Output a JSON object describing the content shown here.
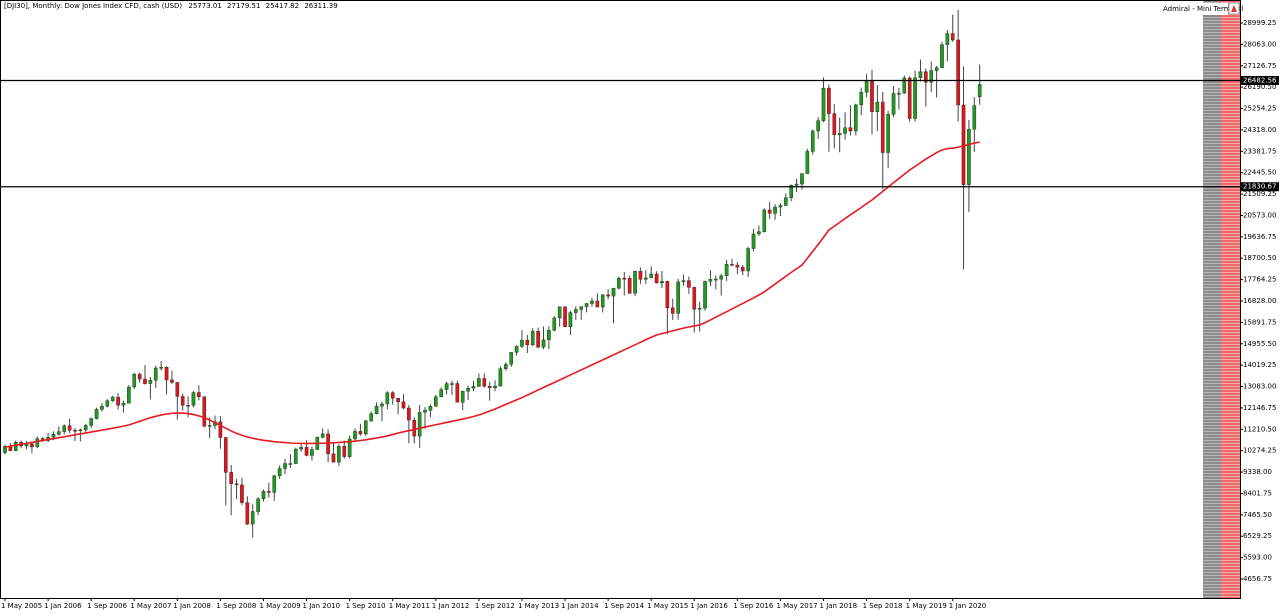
{
  "chart_data": {
    "type": "candlestick",
    "title": "[DJI30], Monthly:  Dow Jones Index CFD, cash (USD)",
    "badge": "Admiral - Mini Terminal",
    "categories": [
      "1 May 2005",
      null,
      null,
      null,
      null,
      null,
      null,
      null,
      "1 Jan 2006",
      null,
      null,
      null,
      null,
      null,
      null,
      null,
      "1 Sep 2006",
      null,
      null,
      null,
      null,
      null,
      null,
      null,
      "1 May 2007",
      null,
      null,
      null,
      null,
      null,
      null,
      null,
      "1 Jan 2008",
      null,
      null,
      null,
      null,
      null,
      null,
      null,
      "1 Sep 2008",
      null,
      null,
      null,
      null,
      null,
      null,
      null,
      "1 May 2009",
      null,
      null,
      null,
      null,
      null,
      null,
      null,
      "1 Jan 2010",
      null,
      null,
      null,
      null,
      null,
      null,
      null,
      "1 Sep 2010",
      null,
      null,
      null,
      null,
      null,
      null,
      null,
      "1 May 2011",
      null,
      null,
      null,
      null,
      null,
      null,
      null,
      "1 Jan 2012",
      null,
      null,
      null,
      null,
      null,
      null,
      null,
      "1 Sep 2012",
      null,
      null,
      null,
      null,
      null,
      null,
      null,
      "1 May 2013",
      null,
      null,
      null,
      null,
      null,
      null,
      null,
      "1 Jan 2014",
      null,
      null,
      null,
      null,
      null,
      null,
      null,
      "1 Sep 2014",
      null,
      null,
      null,
      null,
      null,
      null,
      null,
      "1 May 2015",
      null,
      null,
      null,
      null,
      null,
      null,
      null,
      "1 Jan 2016",
      null,
      null,
      null,
      null,
      null,
      null,
      null,
      "1 Sep 2016",
      null,
      null,
      null,
      null,
      null,
      null,
      null,
      "1 May 2017",
      null,
      null,
      null,
      null,
      null,
      null,
      null,
      "1 Jan 2018",
      null,
      null,
      null,
      null,
      null,
      null,
      null,
      "1 Sep 2018",
      null,
      null,
      null,
      null,
      null,
      null,
      null,
      "1 May 2019",
      null,
      null,
      null,
      null,
      null,
      null,
      null,
      "1 Jan 2020",
      null,
      null,
      null,
      null,
      null
    ],
    "open": [
      10193,
      10467,
      10275,
      10641,
      10482,
      10569,
      10440,
      10806,
      10718,
      10865,
      10993,
      11109,
      11367,
      11168,
      11150,
      11186,
      11381,
      11679,
      12081,
      12222,
      12463,
      12622,
      12269,
      12354,
      13063,
      13628,
      13409,
      13212,
      13358,
      13896,
      13930,
      13372,
      13265,
      12650,
      12266,
      12263,
      12820,
      12638,
      11350,
      11378,
      11544,
      10851,
      9325,
      8829,
      8776,
      8001,
      7063,
      7609,
      8168,
      8500,
      8447,
      9172,
      9496,
      9712,
      9713,
      10345,
      10428,
      10067,
      10325,
      10857,
      11009,
      10137,
      9774,
      10466,
      10015,
      10788,
      11118,
      11006,
      11578,
      11892,
      12226,
      12320,
      12811,
      12570,
      12414,
      12143,
      11614,
      10913,
      11955,
      12046,
      12218,
      12633,
      12952,
      13212,
      13214,
      12393,
      12880,
      13009,
      13091,
      13437,
      13096,
      13026,
      13104,
      13861,
      14054,
      14579,
      14840,
      15116,
      14910,
      15500,
      14810,
      15130,
      15546,
      16086,
      16577,
      15699,
      16322,
      16458,
      16581,
      16717,
      16827,
      16563,
      17098,
      17043,
      17391,
      17828,
      17823,
      17165,
      18133,
      17776,
      17841,
      18011,
      17620,
      17690,
      16528,
      16285,
      17664,
      17720,
      17425,
      16466,
      16517,
      17685,
      17774,
      17787,
      17930,
      18432,
      18401,
      18308,
      18142,
      19124,
      19763,
      19864,
      20812,
      20663,
      20941,
      21009,
      21350,
      21891,
      21948,
      22405,
      23377,
      24272,
      24719,
      26149,
      25029,
      24103,
      24163,
      24416,
      24271,
      25415,
      25965,
      26458,
      25116,
      25538,
      23327,
      24999,
      25916,
      25929,
      26593,
      24815,
      26600,
      26864,
      26403,
      26917,
      27046,
      28051,
      28538,
      28256,
      25409,
      21917,
      24346,
      25773.01
    ],
    "high": [
      10542,
      10600,
      10720,
      10720,
      10700,
      10620,
      10900,
      10880,
      11050,
      11120,
      11330,
      11420,
      11670,
      11260,
      11230,
      11450,
      11730,
      12160,
      12360,
      12530,
      12680,
      12790,
      12470,
      13140,
      13690,
      13690,
      14020,
      13500,
      14000,
      14200,
      13970,
      13780,
      13280,
      12770,
      12650,
      12890,
      13140,
      12660,
      11730,
      11810,
      11790,
      10880,
      9650,
      9030,
      9090,
      8280,
      7930,
      8240,
      8580,
      8880,
      9220,
      9630,
      9920,
      10120,
      10410,
      10580,
      10730,
      10450,
      10900,
      11260,
      11210,
      10600,
      10560,
      10720,
      10950,
      11250,
      11450,
      11630,
      11990,
      12390,
      12420,
      12880,
      12880,
      12580,
      12750,
      12280,
      11740,
      12280,
      12180,
      12300,
      12720,
      13050,
      13300,
      13340,
      13340,
      12900,
      13120,
      13330,
      13650,
      13660,
      13290,
      13360,
      13970,
      14150,
      14590,
      14890,
      15550,
      15340,
      15640,
      15660,
      15710,
      15720,
      16170,
      16590,
      16590,
      16400,
      16590,
      16600,
      16740,
      16970,
      17160,
      17130,
      17350,
      17400,
      17900,
      18100,
      17950,
      18160,
      18290,
      18180,
      18350,
      18130,
      18140,
      17710,
      16930,
      17800,
      17980,
      17900,
      17450,
      16800,
      17720,
      18170,
      17940,
      18020,
      18620,
      18670,
      18540,
      18400,
      19200,
      19990,
      20130,
      20890,
      21170,
      21070,
      21110,
      21540,
      21930,
      22180,
      22420,
      23490,
      24330,
      24880,
      26620,
      26310,
      25450,
      24860,
      25090,
      25400,
      25470,
      26170,
      26770,
      26950,
      26280,
      25980,
      25150,
      26240,
      26160,
      26700,
      26670,
      26910,
      27400,
      27000,
      27310,
      27120,
      28170,
      28700,
      29370,
      29570,
      27100,
      24760,
      25760,
      27179.51
    ],
    "low": [
      10110,
      10250,
      10250,
      10400,
      10330,
      10160,
      10400,
      10660,
      10650,
      10730,
      10930,
      10990,
      11050,
      10700,
      10680,
      11050,
      11270,
      11640,
      11980,
      12170,
      12400,
      12070,
      11940,
      12350,
      12980,
      13260,
      13170,
      12520,
      13020,
      13780,
      12740,
      13200,
      11630,
      12030,
      11730,
      12170,
      12480,
      11290,
      10830,
      11210,
      10360,
      7880,
      7450,
      8150,
      7900,
      7020,
      6470,
      7450,
      8050,
      8220,
      8080,
      9040,
      9250,
      9520,
      9680,
      10240,
      10030,
      9840,
      10300,
      10820,
      9770,
      9760,
      9610,
      9930,
      9940,
      10710,
      10930,
      10930,
      11540,
      11870,
      11560,
      12090,
      12290,
      11860,
      12090,
      10600,
      10600,
      10400,
      11230,
      11740,
      12200,
      12610,
      12740,
      12710,
      12390,
      12040,
      12490,
      12880,
      13070,
      13040,
      12470,
      12880,
      13100,
      13780,
      13940,
      14440,
      14760,
      14550,
      14860,
      14760,
      14720,
      14720,
      15500,
      15700,
      15700,
      15340,
      16000,
      16000,
      16330,
      16580,
      16560,
      16330,
      16900,
      15850,
      17340,
      17070,
      17140,
      17040,
      17580,
      17580,
      17840,
      17590,
      17400,
      15370,
      16000,
      16010,
      17500,
      17140,
      15450,
      15500,
      16400,
      17480,
      17330,
      17060,
      17710,
      18350,
      18000,
      17960,
      17880,
      19000,
      19680,
      19830,
      20410,
      20380,
      20550,
      20990,
      21200,
      21600,
      21700,
      22400,
      23240,
      23920,
      24660,
      23360,
      23510,
      23340,
      23890,
      24080,
      24080,
      24970,
      25750,
      24120,
      24270,
      21710,
      22640,
      24880,
      25210,
      25900,
      24680,
      24680,
      26440,
      25340,
      25980,
      25740,
      27030,
      27320,
      28170,
      24680,
      18210,
      20730,
      23360,
      25417.82
    ],
    "close": [
      10467,
      10275,
      10641,
      10482,
      10569,
      10440,
      10806,
      10718,
      10865,
      10993,
      11109,
      11367,
      11168,
      11150,
      11186,
      11381,
      11679,
      12081,
      12222,
      12463,
      12622,
      12269,
      12354,
      13063,
      13628,
      13409,
      13212,
      13358,
      13896,
      13930,
      13372,
      13265,
      12650,
      12266,
      12263,
      12820,
      12638,
      11350,
      11378,
      11544,
      10851,
      9325,
      8829,
      8776,
      8001,
      7063,
      7609,
      8168,
      8500,
      8447,
      9172,
      9496,
      9712,
      9713,
      10345,
      10428,
      10067,
      10325,
      10857,
      11009,
      10137,
      9774,
      10466,
      10015,
      10788,
      11118,
      11006,
      11578,
      11892,
      12226,
      12320,
      12811,
      12570,
      12414,
      12143,
      11614,
      10913,
      11955,
      12046,
      12218,
      12633,
      12952,
      13212,
      13214,
      12393,
      12880,
      13009,
      13091,
      13437,
      13096,
      13026,
      13104,
      13861,
      14054,
      14579,
      14840,
      15116,
      14910,
      15500,
      14810,
      15130,
      15546,
      16086,
      16577,
      15699,
      16322,
      16458,
      16581,
      16717,
      16827,
      16563,
      17098,
      17043,
      17391,
      17828,
      17823,
      17165,
      18133,
      17776,
      17841,
      18011,
      17620,
      17690,
      16528,
      16285,
      17664,
      17720,
      17425,
      16466,
      16517,
      17685,
      17774,
      17787,
      17930,
      18432,
      18401,
      18308,
      18142,
      19124,
      19763,
      19864,
      20812,
      20663,
      20941,
      21009,
      21350,
      21891,
      21948,
      22405,
      23377,
      24272,
      24719,
      26149,
      25029,
      24103,
      24163,
      24416,
      24271,
      25415,
      25965,
      26458,
      25116,
      25538,
      23327,
      24999,
      25916,
      25929,
      26593,
      24815,
      26600,
      26864,
      26403,
      26917,
      27046,
      28051,
      28538,
      28256,
      25409,
      21917,
      24346,
      25383,
      26311.39
    ],
    "up_color": "#1e9b1e",
    "down_color": "#e3141d",
    "wick_color": "#444444",
    "moving_average": {
      "color": "#e8191f",
      "values": [
        10435,
        10475,
        10515,
        10555,
        10595,
        10635,
        10680,
        10720,
        10760,
        10800,
        10845,
        10885,
        10925,
        10970,
        11010,
        11050,
        11090,
        11135,
        11175,
        11215,
        11260,
        11300,
        11350,
        11400,
        11480,
        11560,
        11640,
        11720,
        11780,
        11840,
        11880,
        11910,
        11925,
        11920,
        11900,
        11860,
        11800,
        11720,
        11620,
        11500,
        11380,
        11260,
        11140,
        11030,
        10950,
        10875,
        10820,
        10770,
        10730,
        10700,
        10670,
        10650,
        10630,
        10611,
        10600,
        10595,
        10590,
        10590,
        10595,
        10600,
        10610,
        10620,
        10635,
        10650,
        10670,
        10690,
        10720,
        10750,
        10790,
        10830,
        10870,
        10920,
        10980,
        11050,
        11100,
        11150,
        11200,
        11260,
        11310,
        11360,
        11410,
        11460,
        11510,
        11560,
        11610,
        11660,
        11710,
        11770,
        11837,
        11920,
        12010,
        12100,
        12200,
        12300,
        12400,
        12500,
        12600,
        12710,
        12820,
        12930,
        13040,
        13150,
        13260,
        13370,
        13480,
        13590,
        13700,
        13810,
        13920,
        14030,
        14140,
        14250,
        14360,
        14470,
        14580,
        14690,
        14800,
        14910,
        15020,
        15130,
        15240,
        15340,
        15400,
        15460,
        15520,
        15580,
        15640,
        15690,
        15735,
        15777,
        15880,
        16000,
        16120,
        16240,
        16360,
        16480,
        16600,
        16720,
        16840,
        16960,
        17090,
        17230,
        17400,
        17570,
        17740,
        17910,
        18080,
        18240,
        18400,
        18700,
        19000,
        19300,
        19620,
        19937,
        20100,
        20270,
        20440,
        20600,
        20760,
        20920,
        21090,
        21250,
        21440,
        21630,
        21820,
        22010,
        22190,
        22380,
        22564,
        22720,
        22880,
        23040,
        23180,
        23320,
        23440,
        23500,
        23520,
        23560,
        23620,
        23680,
        23740,
        23790
      ]
    },
    "hlines": [
      26482.56,
      21830.67
    ],
    "ylim": [
      3825,
      30006
    ],
    "yticks": [
      28999.25,
      {
        "value": 28063,
        "label": "28063.00"
      },
      27126.75,
      {
        "value": 26190.5,
        "label": "26190.50"
      },
      25254.25,
      {
        "value": 24318,
        "label": "24318.00"
      },
      23381.75,
      {
        "value": 22445.5,
        "label": "22445.50"
      },
      21509.25,
      {
        "value": 20573,
        "label": "20573.00"
      },
      19636.75,
      {
        "value": 18700.5,
        "label": "18700.50"
      },
      17764.25,
      {
        "value": 16828,
        "label": "16828.00"
      },
      15891.75,
      {
        "value": 14955.5,
        "label": "14955.50"
      },
      14019.25,
      {
        "value": 13083,
        "label": "13083.00"
      },
      12146.75,
      {
        "value": 11210.5,
        "label": "11210.50"
      },
      10274.25,
      {
        "value": 9338,
        "label": "9338.00"
      },
      8401.75,
      {
        "value": 7465.5,
        "label": "7465.50"
      },
      6529.25,
      {
        "value": 5593,
        "label": "5593.00"
      },
      4656.75
    ]
  }
}
